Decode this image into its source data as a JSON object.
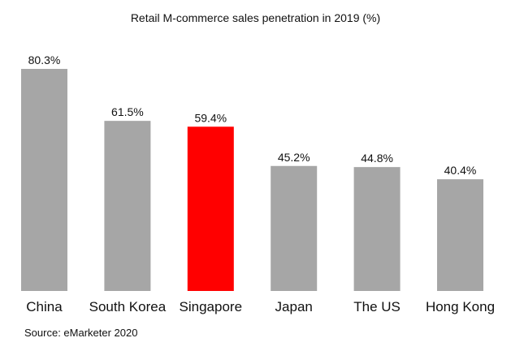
{
  "chart_data": {
    "type": "bar",
    "title": "Retail M-commerce sales penetration in 2019 (%)",
    "categories": [
      "China",
      "South Korea",
      "Singapore",
      "Japan",
      "The US",
      "Hong Kong"
    ],
    "values": [
      80.3,
      61.5,
      59.4,
      45.2,
      44.8,
      40.4
    ],
    "data_labels": [
      "80.3%",
      "61.5%",
      "59.4%",
      "45.2%",
      "44.8%",
      "40.4%"
    ],
    "colors": [
      "#a6a6a6",
      "#a6a6a6",
      "#ff0000",
      "#a6a6a6",
      "#a6a6a6",
      "#a6a6a6"
    ],
    "highlight": "Singapore",
    "ylim": [
      0,
      100
    ],
    "grid": false,
    "source": "Source: eMarketer 2020"
  }
}
